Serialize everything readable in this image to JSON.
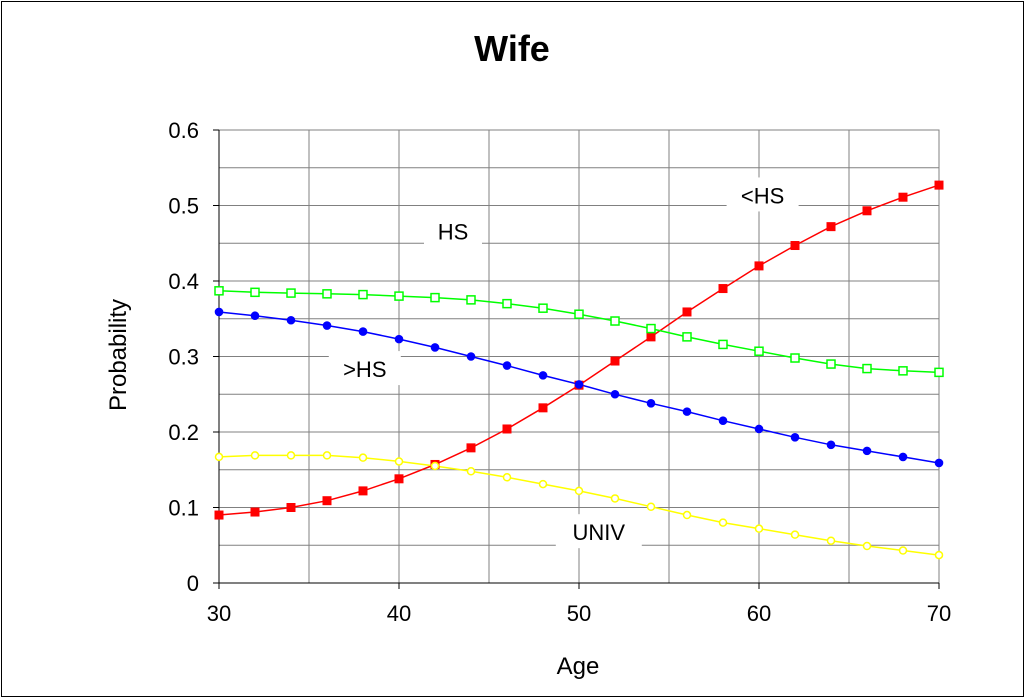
{
  "chart_data": {
    "type": "line",
    "title": "Wife",
    "xlabel": "Age",
    "ylabel": "Probability",
    "xlim": [
      30,
      70
    ],
    "ylim": [
      0,
      0.6
    ],
    "xticks": [
      "30",
      "40",
      "50",
      "60",
      "70"
    ],
    "yticks": [
      "0",
      "0.1",
      "0.2",
      "0.3",
      "0.4",
      "0.5",
      "0.6"
    ],
    "grid": true,
    "x": [
      30,
      32,
      34,
      36,
      38,
      40,
      42,
      44,
      46,
      48,
      50,
      52,
      54,
      56,
      58,
      60,
      62,
      64,
      66,
      68,
      70
    ],
    "series": [
      {
        "name": "<HS",
        "color": "#ff0000",
        "marker": "filled-square",
        "values": [
          0.09,
          0.094,
          0.1,
          0.109,
          0.122,
          0.138,
          0.157,
          0.179,
          0.204,
          0.232,
          0.262,
          0.294,
          0.326,
          0.359,
          0.39,
          0.42,
          0.447,
          0.472,
          0.493,
          0.511,
          0.527
        ]
      },
      {
        "name": "HS",
        "color": "#00ff00",
        "marker": "open-square",
        "values": [
          0.387,
          0.385,
          0.384,
          0.383,
          0.382,
          0.38,
          0.378,
          0.375,
          0.37,
          0.364,
          0.356,
          0.347,
          0.337,
          0.326,
          0.316,
          0.307,
          0.298,
          0.29,
          0.284,
          0.281,
          0.279
        ]
      },
      {
        "name": ">HS",
        "color": "#0000ff",
        "marker": "filled-circle",
        "values": [
          0.359,
          0.354,
          0.348,
          0.341,
          0.333,
          0.323,
          0.312,
          0.3,
          0.288,
          0.275,
          0.263,
          0.25,
          0.238,
          0.227,
          0.215,
          0.204,
          0.193,
          0.183,
          0.175,
          0.167,
          0.159
        ]
      },
      {
        "name": "UNIV",
        "color": "#ffff00",
        "marker": "open-circle",
        "values": [
          0.167,
          0.169,
          0.169,
          0.169,
          0.166,
          0.161,
          0.155,
          0.148,
          0.14,
          0.131,
          0.122,
          0.112,
          0.101,
          0.09,
          0.08,
          0.072,
          0.064,
          0.056,
          0.049,
          0.043,
          0.037
        ]
      }
    ],
    "annotations": [
      {
        "text": "<HS",
        "x": 60.2,
        "y": 0.512
      },
      {
        "text": "HS",
        "x": 43,
        "y": 0.464
      },
      {
        "text": ">HS",
        "x": 38.1,
        "y": 0.282
      },
      {
        "text": "UNIV",
        "x": 51.1,
        "y": 0.066
      }
    ]
  }
}
